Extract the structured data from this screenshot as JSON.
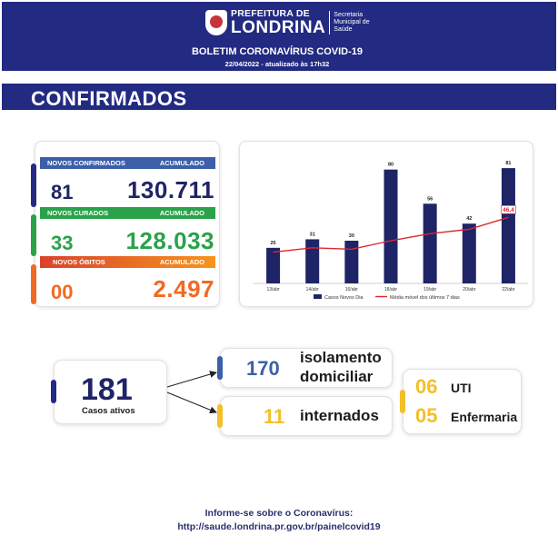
{
  "header": {
    "logo_line1": "PREFEITURA DE",
    "logo_line2": "LONDRINA",
    "secretaria_l1": "Secretaria",
    "secretaria_l2": "Municipal de",
    "secretaria_l3": "Saúde",
    "title": "BOLETIM CORONAVÍRUS COVID-19",
    "date": "22/04/2022 - atualizado às 17h32"
  },
  "section": {
    "title": "CONFIRMADOS"
  },
  "stats": {
    "confirmados": {
      "header_left": "NOVOS CONFIRMADOS",
      "header_right": "ACUMULADO",
      "new": "81",
      "total": "130.711"
    },
    "curados": {
      "header_left": "NOVOS CURADOS",
      "header_right": "ACUMULADO",
      "new": "33",
      "total": "128.033"
    },
    "obitos": {
      "header_left": "NOVOS ÓBITOS",
      "header_right": "ACUMULADO",
      "new": "00",
      "total": "2.497"
    }
  },
  "colors": {
    "navy": "#222a82",
    "blue_header": "#3c5fa8",
    "green": "#2aa24a",
    "orange": "#f26a21",
    "yellow": "#f2c02a",
    "red_line": "#d9292f",
    "bar": "#1e2466"
  },
  "chart_data": {
    "type": "bar",
    "categories": [
      "13/abr",
      "14/abr",
      "16/abr",
      "18/abr",
      "19/abr",
      "20/abr",
      "22/abr"
    ],
    "series": [
      {
        "name": "Casos Novos Dia",
        "type": "bar",
        "values": [
          25,
          31,
          30,
          80,
          56,
          42,
          81
        ]
      },
      {
        "name": "Média móvel dos últimos 7 dias",
        "type": "line",
        "values": [
          null,
          null,
          null,
          null,
          null,
          null,
          46.4
        ]
      }
    ],
    "moving_avg_estimate": [
      22,
      25,
      24,
      30,
      35,
      38,
      46.4
    ],
    "highlighted_label": "46,4",
    "ylim": [
      0,
      90
    ],
    "legend": "bottom"
  },
  "active": {
    "value": "181",
    "label": "Casos ativos"
  },
  "isolamento": {
    "value": "170",
    "label_l1": "isolamento",
    "label_l2": "domiciliar"
  },
  "internados": {
    "value": "11",
    "label": "internados"
  },
  "uti": {
    "value": "06",
    "label": "UTI"
  },
  "enfermaria": {
    "value": "05",
    "label": "Enfermaria"
  },
  "footer": {
    "line1": "Informe-se sobre o Coronavírus:",
    "line2": "http://saude.londrina.pr.gov.br/painelcovid19"
  }
}
